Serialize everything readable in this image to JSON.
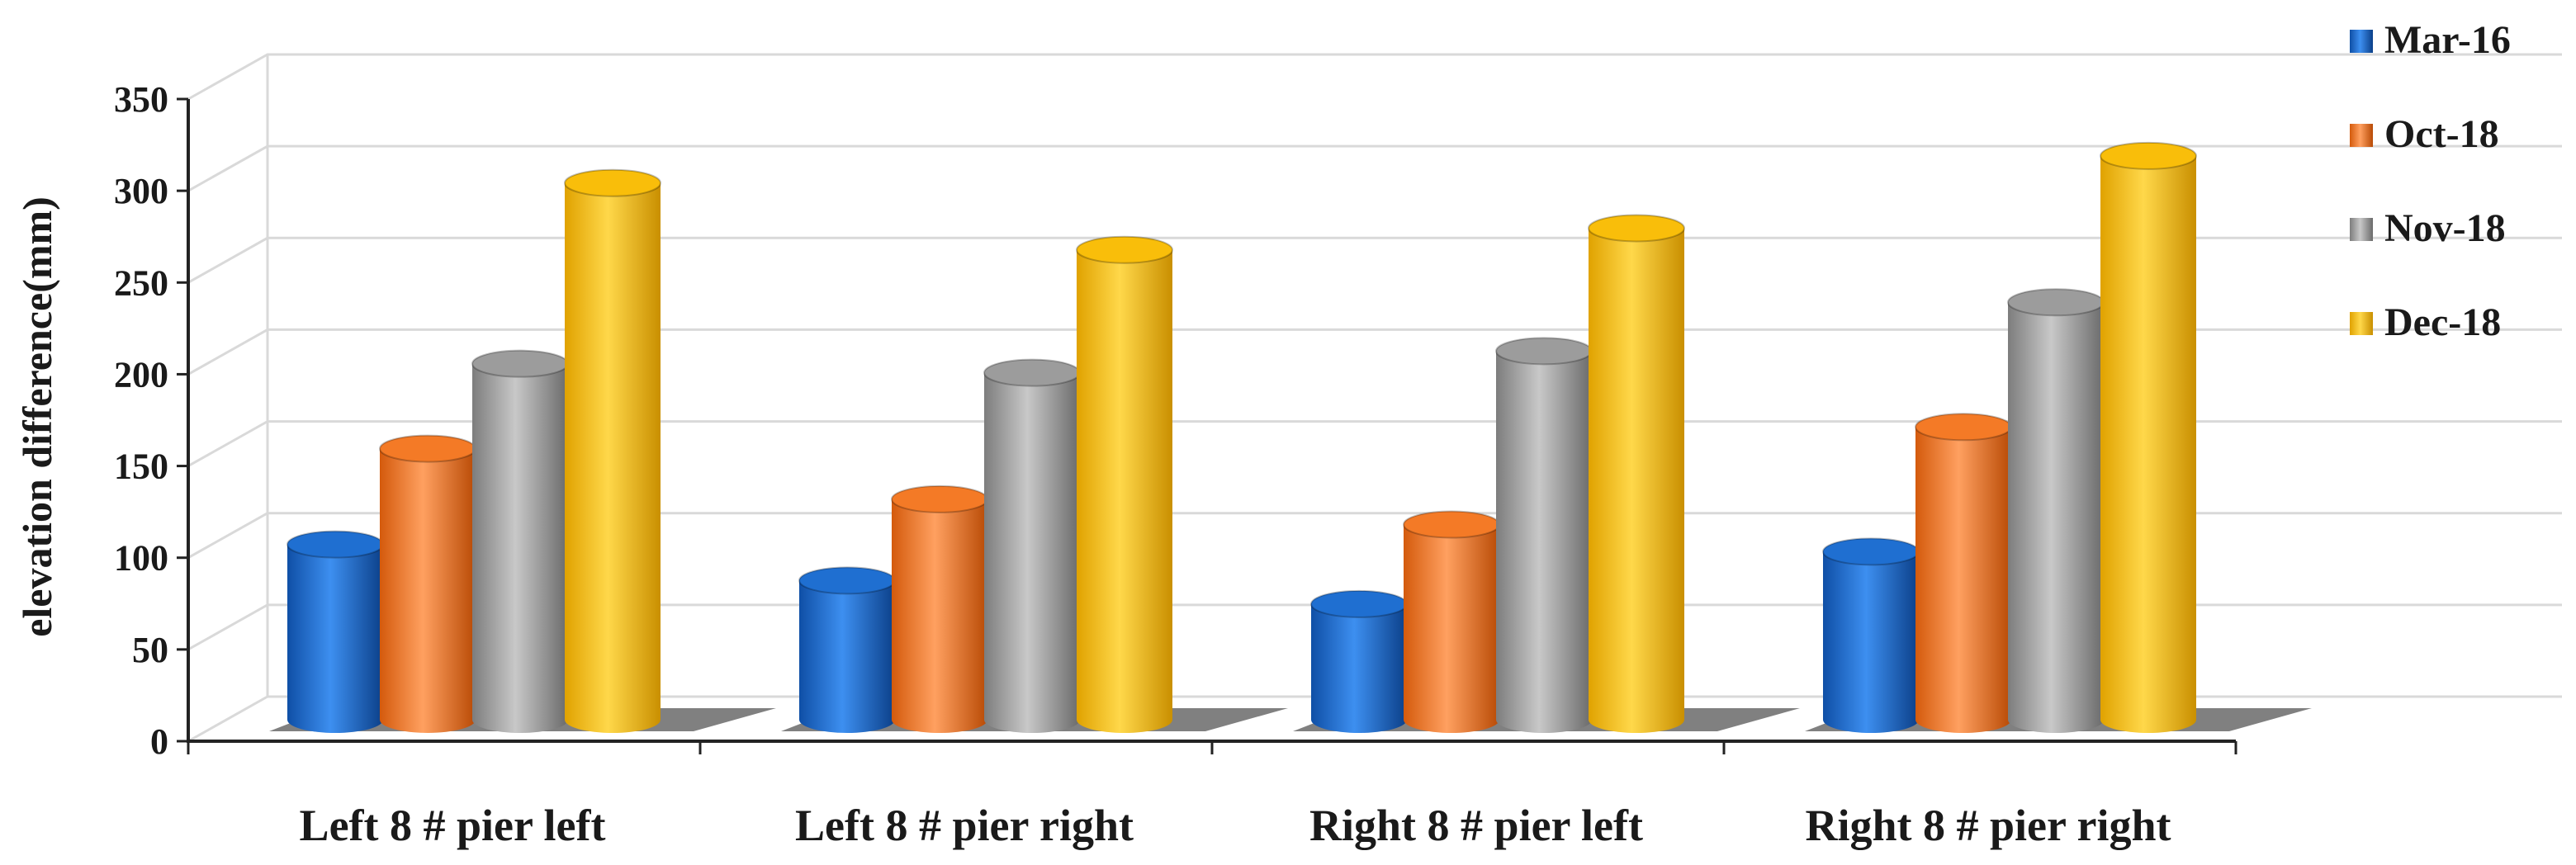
{
  "chart_data": {
    "type": "bar",
    "style": "3d-cylinder",
    "title": "",
    "xlabel": "",
    "ylabel": "elevation difference(mm)",
    "ylim": [
      0,
      350
    ],
    "yticks": [
      "0",
      "50",
      "100",
      "150",
      "200",
      "250",
      "300",
      "350"
    ],
    "grid": true,
    "legend_position": "right",
    "categories": [
      "Left 8 # pier left",
      "Left 8 # pier right",
      "Right 8 # pier left",
      "Right 8 # pier right"
    ],
    "series": [
      {
        "name": "Mar-16",
        "color": "#1f6fd1",
        "values": [
          97,
          77,
          64,
          93
        ]
      },
      {
        "name": "Oct-18",
        "color": "#f47a26",
        "values": [
          150,
          122,
          108,
          162
        ]
      },
      {
        "name": "Nov-18",
        "color": "#9c9c9c",
        "values": [
          197,
          192,
          204,
          231
        ]
      },
      {
        "name": "Dec-18",
        "color": "#f9be0a",
        "values": [
          297,
          260,
          272,
          312
        ]
      }
    ]
  }
}
